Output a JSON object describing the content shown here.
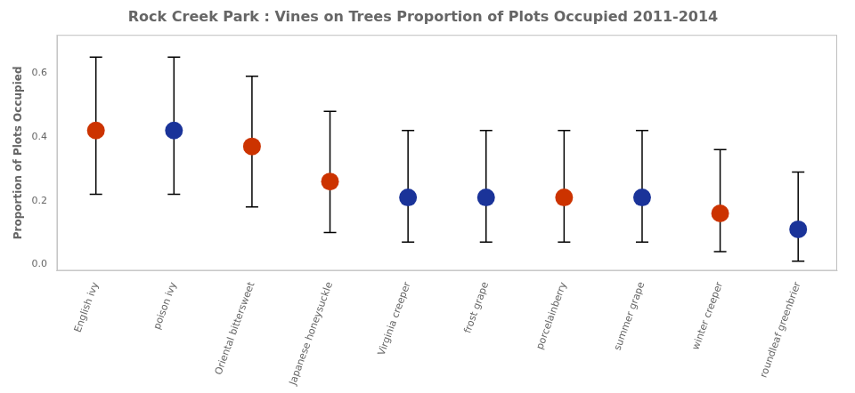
{
  "chart_data": {
    "type": "scatter",
    "title": "Rock Creek Park : Vines on Trees Proportion of Plots Occupied 2011-2014",
    "ylabel": "Proportion of Plots Occupied",
    "categories": [
      "English ivy",
      "poison ivy",
      "Oriental bittersweet",
      "Japanese honeysuckle",
      "Virginia creeper",
      "frost grape",
      "porcelainberry",
      "summer grape",
      "winter creeper",
      "roundleaf greenbrier"
    ],
    "values": [
      0.42,
      0.42,
      0.37,
      0.26,
      0.21,
      0.21,
      0.21,
      0.21,
      0.16,
      0.11
    ],
    "lower": [
      0.22,
      0.22,
      0.18,
      0.1,
      0.07,
      0.07,
      0.07,
      0.07,
      0.04,
      0.01
    ],
    "upper": [
      0.65,
      0.65,
      0.59,
      0.48,
      0.42,
      0.42,
      0.42,
      0.42,
      0.36,
      0.29
    ],
    "colors": [
      "#cc3300",
      "#1a3399",
      "#cc3300",
      "#cc3300",
      "#1a3399",
      "#1a3399",
      "#cc3300",
      "#1a3399",
      "#cc3300",
      "#1a3399"
    ],
    "ylim": [
      -0.02,
      0.72
    ],
    "yticks": [
      {
        "value": 0,
        "label": "0.0"
      },
      0.2,
      0.4,
      0.6
    ],
    "grid": false
  }
}
